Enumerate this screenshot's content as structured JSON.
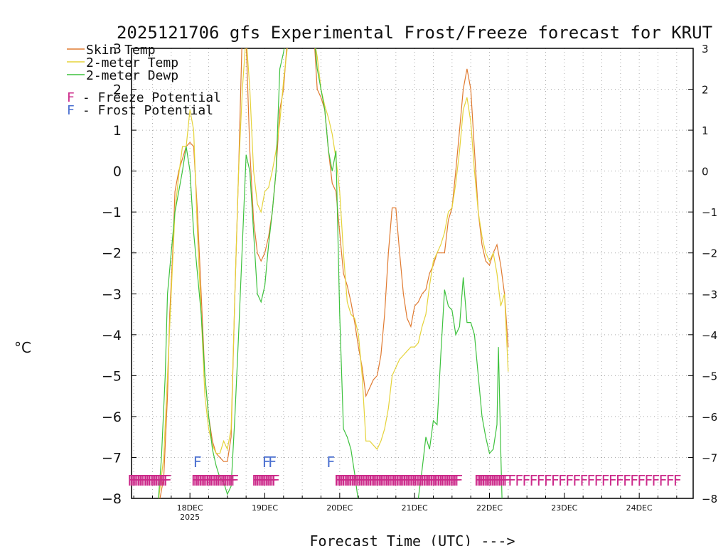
{
  "chart_data": {
    "type": "line",
    "title": "2025121706 gfs Experimental Frost/Freeze forecast for KRUT",
    "xlabel": "Forecast Time (UTC) --->",
    "ylabel": "°C",
    "ylim": [
      -8,
      3
    ],
    "xlim": [
      -0.78,
      6.72
    ],
    "yticks": [
      -8,
      -7,
      -6,
      -5,
      -4,
      -3,
      -2,
      -1,
      0,
      1,
      2,
      3
    ],
    "yticks_right": [
      -8,
      -7,
      -6,
      -5,
      -4,
      -3,
      -2,
      -1,
      0,
      1,
      2,
      3
    ],
    "xticks": [
      {
        "x": 0,
        "label": "18DEC",
        "sublabel": "2025"
      },
      {
        "x": 1,
        "label": "19DEC",
        "sublabel": ""
      },
      {
        "x": 2,
        "label": "20DEC",
        "sublabel": ""
      },
      {
        "x": 3,
        "label": "21DEC",
        "sublabel": ""
      },
      {
        "x": 4,
        "label": "22DEC",
        "sublabel": ""
      },
      {
        "x": 5,
        "label": "23DEC",
        "sublabel": ""
      },
      {
        "x": 6,
        "label": "24DEC",
        "sublabel": ""
      }
    ],
    "grid": true,
    "legend": {
      "position": "top-left",
      "series_entries": [
        "Skin Temp",
        "2-meter Temp",
        "2-meter Dewp"
      ],
      "marker_entries": [
        {
          "symbol": "F",
          "text": " - Freeze Potential",
          "color": "#cc2a8a"
        },
        {
          "symbol": "F",
          "text": " - Frost Potential",
          "color": "#4a6fd0"
        }
      ]
    },
    "series": [
      {
        "name": "Skin Temp",
        "color": "#e07a30",
        "points": [
          [
            -0.45,
            -8.5
          ],
          [
            -0.35,
            -7.5
          ],
          [
            -0.3,
            -5.5
          ],
          [
            -0.27,
            -3.5
          ],
          [
            -0.23,
            -2.0
          ],
          [
            -0.2,
            -0.5
          ],
          [
            -0.15,
            0.0
          ],
          [
            -0.1,
            0.3
          ],
          [
            -0.05,
            0.6
          ],
          [
            0.0,
            0.7
          ],
          [
            0.05,
            0.6
          ],
          [
            0.1,
            -1.0
          ],
          [
            0.15,
            -3.0
          ],
          [
            0.2,
            -5.0
          ],
          [
            0.25,
            -6.0
          ],
          [
            0.3,
            -6.6
          ],
          [
            0.35,
            -6.9
          ],
          [
            0.4,
            -7.0
          ],
          [
            0.45,
            -7.1
          ],
          [
            0.5,
            -7.1
          ],
          [
            0.55,
            -6.5
          ],
          [
            0.6,
            -3.0
          ],
          [
            0.65,
            0.0
          ],
          [
            0.7,
            3.5
          ],
          [
            0.75,
            3.2
          ],
          [
            0.8,
            0.5
          ],
          [
            0.85,
            -1.2
          ],
          [
            0.9,
            -2.0
          ],
          [
            0.95,
            -2.2
          ],
          [
            1.0,
            -2.0
          ],
          [
            1.05,
            -1.6
          ],
          [
            1.1,
            -1.0
          ],
          [
            1.15,
            0.0
          ],
          [
            1.2,
            1.5
          ],
          [
            1.25,
            2.0
          ],
          [
            1.3,
            3.2
          ],
          [
            1.4,
            3.5
          ],
          [
            1.65,
            3.5
          ],
          [
            1.7,
            2.0
          ],
          [
            1.75,
            1.8
          ],
          [
            1.8,
            1.5
          ],
          [
            1.85,
            0.5
          ],
          [
            1.9,
            -0.3
          ],
          [
            1.95,
            -0.5
          ],
          [
            2.0,
            -1.5
          ],
          [
            2.05,
            -2.5
          ],
          [
            2.1,
            -2.8
          ],
          [
            2.15,
            -3.2
          ],
          [
            2.2,
            -3.7
          ],
          [
            2.25,
            -4.3
          ],
          [
            2.3,
            -4.8
          ],
          [
            2.35,
            -5.5
          ],
          [
            2.4,
            -5.3
          ],
          [
            2.45,
            -5.1
          ],
          [
            2.5,
            -5.0
          ],
          [
            2.55,
            -4.5
          ],
          [
            2.6,
            -3.5
          ],
          [
            2.65,
            -2.0
          ],
          [
            2.7,
            -0.9
          ],
          [
            2.75,
            -0.9
          ],
          [
            2.8,
            -2.0
          ],
          [
            2.85,
            -3.0
          ],
          [
            2.9,
            -3.6
          ],
          [
            2.95,
            -3.8
          ],
          [
            3.0,
            -3.3
          ],
          [
            3.05,
            -3.2
          ],
          [
            3.1,
            -3.0
          ],
          [
            3.15,
            -2.9
          ],
          [
            3.2,
            -2.5
          ],
          [
            3.25,
            -2.3
          ],
          [
            3.3,
            -2.0
          ],
          [
            3.35,
            -2.0
          ],
          [
            3.4,
            -2.0
          ],
          [
            3.45,
            -1.2
          ],
          [
            3.5,
            -0.9
          ],
          [
            3.55,
            0.0
          ],
          [
            3.6,
            1.0
          ],
          [
            3.65,
            2.0
          ],
          [
            3.7,
            2.5
          ],
          [
            3.75,
            2.0
          ],
          [
            3.8,
            0.5
          ],
          [
            3.85,
            -1.0
          ],
          [
            3.9,
            -1.8
          ],
          [
            3.95,
            -2.2
          ],
          [
            4.0,
            -2.3
          ],
          [
            4.05,
            -2.0
          ],
          [
            4.1,
            -1.8
          ],
          [
            4.15,
            -2.3
          ],
          [
            4.2,
            -3.0
          ],
          [
            4.25,
            -4.3
          ]
        ]
      },
      {
        "name": "2-meter Temp",
        "color": "#e5d33a",
        "points": [
          [
            -0.55,
            -8.0
          ],
          [
            -0.45,
            -8.5
          ],
          [
            -0.35,
            -7.0
          ],
          [
            -0.3,
            -5.0
          ],
          [
            -0.25,
            -3.0
          ],
          [
            -0.2,
            -1.0
          ],
          [
            -0.15,
            -0.1
          ],
          [
            -0.1,
            0.6
          ],
          [
            -0.05,
            0.6
          ],
          [
            0.0,
            1.5
          ],
          [
            0.05,
            1.0
          ],
          [
            0.1,
            -1.5
          ],
          [
            0.15,
            -3.5
          ],
          [
            0.2,
            -5.5
          ],
          [
            0.25,
            -6.3
          ],
          [
            0.3,
            -6.7
          ],
          [
            0.35,
            -6.9
          ],
          [
            0.4,
            -6.9
          ],
          [
            0.45,
            -6.6
          ],
          [
            0.5,
            -6.8
          ],
          [
            0.55,
            -6.3
          ],
          [
            0.6,
            -3.0
          ],
          [
            0.65,
            0.0
          ],
          [
            0.7,
            2.0
          ],
          [
            0.75,
            3.3
          ],
          [
            0.8,
            2.0
          ],
          [
            0.85,
            0.0
          ],
          [
            0.9,
            -0.8
          ],
          [
            0.95,
            -1.0
          ],
          [
            1.0,
            -0.5
          ],
          [
            1.05,
            -0.4
          ],
          [
            1.1,
            0.0
          ],
          [
            1.15,
            0.5
          ],
          [
            1.2,
            1.2
          ],
          [
            1.25,
            2.2
          ],
          [
            1.3,
            3.0
          ],
          [
            1.4,
            3.3
          ],
          [
            1.65,
            3.3
          ],
          [
            1.7,
            2.8
          ],
          [
            1.75,
            2.0
          ],
          [
            1.8,
            1.6
          ],
          [
            1.85,
            1.3
          ],
          [
            1.9,
            0.9
          ],
          [
            1.95,
            0.3
          ],
          [
            2.0,
            -0.5
          ],
          [
            2.05,
            -2.0
          ],
          [
            2.1,
            -3.2
          ],
          [
            2.15,
            -3.5
          ],
          [
            2.2,
            -3.6
          ],
          [
            2.25,
            -4.0
          ],
          [
            2.3,
            -5.0
          ],
          [
            2.35,
            -6.6
          ],
          [
            2.4,
            -6.6
          ],
          [
            2.45,
            -6.7
          ],
          [
            2.5,
            -6.8
          ],
          [
            2.55,
            -6.6
          ],
          [
            2.6,
            -6.3
          ],
          [
            2.65,
            -5.8
          ],
          [
            2.7,
            -5.0
          ],
          [
            2.75,
            -4.8
          ],
          [
            2.8,
            -4.6
          ],
          [
            2.85,
            -4.5
          ],
          [
            2.9,
            -4.4
          ],
          [
            2.95,
            -4.3
          ],
          [
            3.0,
            -4.3
          ],
          [
            3.05,
            -4.2
          ],
          [
            3.1,
            -3.8
          ],
          [
            3.15,
            -3.5
          ],
          [
            3.2,
            -2.8
          ],
          [
            3.25,
            -2.2
          ],
          [
            3.3,
            -2.0
          ],
          [
            3.35,
            -1.8
          ],
          [
            3.4,
            -1.5
          ],
          [
            3.45,
            -1.0
          ],
          [
            3.5,
            -0.9
          ],
          [
            3.55,
            -0.3
          ],
          [
            3.6,
            0.5
          ],
          [
            3.65,
            1.5
          ],
          [
            3.7,
            1.8
          ],
          [
            3.75,
            1.2
          ],
          [
            3.8,
            0.0
          ],
          [
            3.85,
            -1.0
          ],
          [
            3.9,
            -1.6
          ],
          [
            3.95,
            -2.0
          ],
          [
            4.0,
            -2.2
          ],
          [
            4.05,
            -2.0
          ],
          [
            4.1,
            -2.5
          ],
          [
            4.15,
            -3.3
          ],
          [
            4.2,
            -3.0
          ],
          [
            4.25,
            -4.9
          ]
        ]
      },
      {
        "name": "2-meter Dewp",
        "color": "#3ec23e",
        "points": [
          [
            -0.42,
            -8.0
          ],
          [
            -0.38,
            -7.0
          ],
          [
            -0.33,
            -5.0
          ],
          [
            -0.3,
            -3.0
          ],
          [
            -0.25,
            -2.0
          ],
          [
            -0.2,
            -1.0
          ],
          [
            -0.15,
            -0.5
          ],
          [
            -0.1,
            0.0
          ],
          [
            -0.05,
            0.6
          ],
          [
            0.0,
            0.0
          ],
          [
            0.05,
            -1.5
          ],
          [
            0.1,
            -2.5
          ],
          [
            0.15,
            -3.5
          ],
          [
            0.2,
            -5.0
          ],
          [
            0.25,
            -6.0
          ],
          [
            0.3,
            -6.8
          ],
          [
            0.35,
            -7.2
          ],
          [
            0.4,
            -7.5
          ],
          [
            0.45,
            -7.6
          ],
          [
            0.5,
            -7.9
          ],
          [
            0.55,
            -7.7
          ],
          [
            0.6,
            -6.0
          ],
          [
            0.65,
            -4.0
          ],
          [
            0.7,
            -1.8
          ],
          [
            0.75,
            0.4
          ],
          [
            0.8,
            0.0
          ],
          [
            0.85,
            -1.5
          ],
          [
            0.9,
            -3.0
          ],
          [
            0.95,
            -3.2
          ],
          [
            1.0,
            -2.8
          ],
          [
            1.05,
            -1.8
          ],
          [
            1.1,
            -1.0
          ],
          [
            1.15,
            0.0
          ],
          [
            1.2,
            2.5
          ],
          [
            1.25,
            2.9
          ],
          [
            1.3,
            3.5
          ],
          [
            1.65,
            3.5
          ],
          [
            1.7,
            2.5
          ],
          [
            1.75,
            2.0
          ],
          [
            1.8,
            1.5
          ],
          [
            1.85,
            0.5
          ],
          [
            1.9,
            0.0
          ],
          [
            1.95,
            0.5
          ],
          [
            2.0,
            -3.5
          ],
          [
            2.05,
            -6.3
          ],
          [
            2.1,
            -6.5
          ],
          [
            2.15,
            -6.8
          ],
          [
            2.2,
            -7.4
          ],
          [
            2.25,
            -8.1
          ],
          [
            2.5,
            -8.3
          ],
          [
            2.8,
            -8.3
          ],
          [
            3.05,
            -8.0
          ],
          [
            3.1,
            -7.3
          ],
          [
            3.15,
            -6.5
          ],
          [
            3.2,
            -6.8
          ],
          [
            3.25,
            -6.1
          ],
          [
            3.3,
            -6.2
          ],
          [
            3.35,
            -4.5
          ],
          [
            3.4,
            -2.9
          ],
          [
            3.45,
            -3.3
          ],
          [
            3.5,
            -3.4
          ],
          [
            3.55,
            -4.0
          ],
          [
            3.6,
            -3.8
          ],
          [
            3.65,
            -2.6
          ],
          [
            3.7,
            -3.7
          ],
          [
            3.75,
            -3.7
          ],
          [
            3.8,
            -4.0
          ],
          [
            3.85,
            -5.0
          ],
          [
            3.9,
            -6.0
          ],
          [
            3.95,
            -6.5
          ],
          [
            4.0,
            -6.9
          ],
          [
            4.05,
            -6.8
          ],
          [
            4.1,
            -6.2
          ],
          [
            4.12,
            -4.3
          ],
          [
            4.15,
            -6.8
          ],
          [
            4.17,
            -8.2
          ]
        ]
      }
    ],
    "frost_marks": [
      {
        "x": 0.1,
        "y": -7.1,
        "text": "F",
        "color": "#4a6fd0"
      },
      {
        "x": 1.02,
        "y": -7.1,
        "text": "F",
        "color": "#4a6fd0"
      },
      {
        "x": 1.1,
        "y": -7.1,
        "text": "F",
        "color": "#4a6fd0"
      },
      {
        "x": 1.88,
        "y": -7.1,
        "text": "F",
        "color": "#4a6fd0"
      }
    ],
    "freeze_marks": {
      "symbol": "F",
      "color": "#cc2a8a",
      "y": -7.55,
      "segments": [
        {
          "start": -0.78,
          "end": -0.3,
          "step": 0.024
        },
        {
          "start": 0.07,
          "end": 0.62,
          "step": 0.024
        },
        {
          "start": 0.88,
          "end": 1.15,
          "step": 0.024
        },
        {
          "start": 1.98,
          "end": 3.6,
          "step": 0.024
        },
        {
          "start": 3.85,
          "end": 4.25,
          "step": 0.024
        },
        {
          "start": 4.3,
          "end": 6.58,
          "step": 0.096
        }
      ]
    }
  }
}
